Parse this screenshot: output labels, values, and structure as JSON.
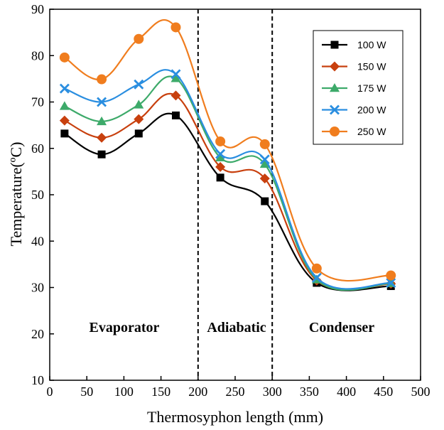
{
  "chart_data": {
    "type": "line",
    "title": "",
    "xlabel": "Thermosyphon length (mm)",
    "ylabel": "Temperature(ºC)",
    "xlim": [
      0,
      500
    ],
    "ylim": [
      10,
      90
    ],
    "xticks": [
      "0",
      "50",
      "100",
      "150",
      "200",
      "250",
      "300",
      "350",
      "400",
      "450",
      "500"
    ],
    "yticks": [
      "10",
      "20",
      "30",
      "40",
      "50",
      "60",
      "70",
      "80",
      "90"
    ],
    "x": [
      20,
      70,
      120,
      170,
      230,
      290,
      360,
      460
    ],
    "series": [
      {
        "name": "100 W",
        "values": [
          63.2,
          58.7,
          63.2,
          67.1,
          53.7,
          48.6,
          31.0,
          30.3
        ],
        "color": "#000000",
        "marker": "square"
      },
      {
        "name": "150 W",
        "values": [
          66.0,
          62.3,
          66.3,
          71.4,
          56.0,
          53.5,
          31.5,
          30.8
        ],
        "color": "#c8400e",
        "marker": "diamond"
      },
      {
        "name": "175 W",
        "values": [
          69.1,
          65.8,
          69.4,
          75.1,
          58.0,
          56.6,
          31.7,
          30.9
        ],
        "color": "#3daa6a",
        "marker": "triangle"
      },
      {
        "name": "200 W",
        "values": [
          72.9,
          70.0,
          73.8,
          76.0,
          58.8,
          57.6,
          32.1,
          31.0
        ],
        "color": "#2a8ee0",
        "marker": "x"
      },
      {
        "name": "250 W",
        "values": [
          79.6,
          74.9,
          83.6,
          86.1,
          61.5,
          60.9,
          34.1,
          32.6
        ],
        "color": "#f07d1e",
        "marker": "circle"
      }
    ],
    "dividers": [
      200,
      300
    ],
    "regions": [
      "Evaporator",
      "Adiabatic",
      "Condenser"
    ],
    "legend_position": "top-right",
    "grid": false
  }
}
